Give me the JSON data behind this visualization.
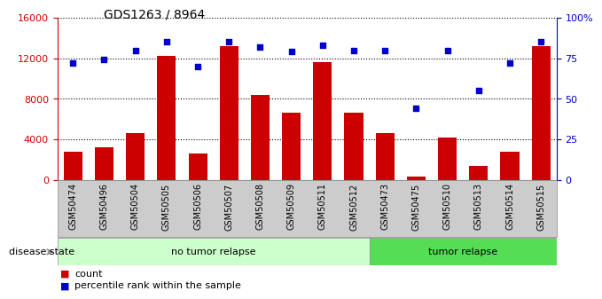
{
  "title": "GDS1263 / 8964",
  "samples": [
    "GSM50474",
    "GSM50496",
    "GSM50504",
    "GSM50505",
    "GSM50506",
    "GSM50507",
    "GSM50508",
    "GSM50509",
    "GSM50511",
    "GSM50512",
    "GSM50473",
    "GSM50475",
    "GSM50510",
    "GSM50513",
    "GSM50514",
    "GSM50515"
  ],
  "counts": [
    2800,
    3200,
    4600,
    12200,
    2600,
    13200,
    8400,
    6600,
    11600,
    6600,
    4600,
    300,
    4200,
    1400,
    2800,
    13200
  ],
  "percentiles": [
    72,
    74,
    80,
    85,
    70,
    85,
    82,
    79,
    83,
    80,
    80,
    44,
    80,
    55,
    72,
    85
  ],
  "no_tumor_count": 10,
  "tumor_count": 6,
  "ylim_left": [
    0,
    16000
  ],
  "ylim_right": [
    0,
    100
  ],
  "yticks_left": [
    0,
    4000,
    8000,
    12000,
    16000
  ],
  "yticks_right": [
    0,
    25,
    50,
    75,
    100
  ],
  "yticklabels_right": [
    "0",
    "25",
    "50",
    "75",
    "100%"
  ],
  "bar_color": "#cc0000",
  "dot_color": "#0000cc",
  "bg_color_notumor": "#ccffcc",
  "bg_color_tumor": "#55dd55",
  "label_bg_color": "#cccccc",
  "legend_count_label": "count",
  "legend_pct_label": "percentile rank within the sample",
  "disease_state_label": "disease state",
  "no_tumor_label": "no tumor relapse",
  "tumor_label": "tumor relapse"
}
